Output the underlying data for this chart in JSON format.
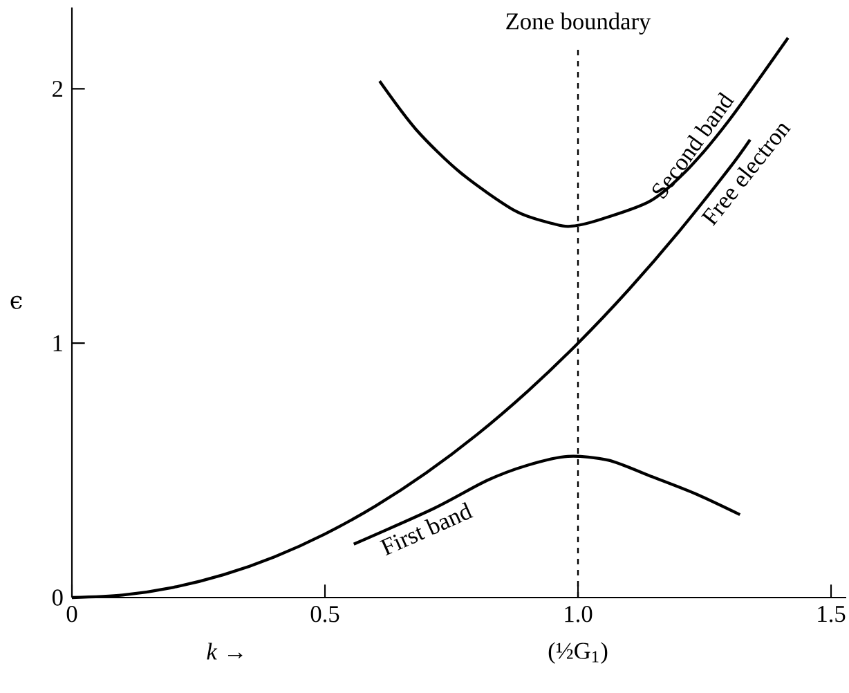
{
  "chart_data": {
    "type": "line",
    "xlabel": "*k* →",
    "ylabel": "ϵ",
    "xlim": [
      0,
      1.53
    ],
    "ylim": [
      0,
      2.32
    ],
    "xticks": [
      0,
      0.5,
      {
        "value": 1.0,
        "label": "1.0 (½G$_{1}$)"
      },
      1.5
    ],
    "yticks": [
      0,
      1,
      2
    ],
    "series": [
      {
        "name": "Free electron",
        "color": "#000000",
        "x": [
          0,
          0.1,
          0.2,
          0.3,
          0.4,
          0.5,
          0.6,
          0.7,
          0.8,
          0.9,
          1.0,
          1.1,
          1.2,
          1.3,
          1.34
        ],
        "values": [
          0,
          0.01,
          0.04,
          0.09,
          0.16,
          0.25,
          0.36,
          0.49,
          0.64,
          0.81,
          1.0,
          1.21,
          1.44,
          1.69,
          1.8
        ]
      },
      {
        "name": "First band",
        "color": "#000000",
        "x": [
          0.557,
          0.715,
          0.82,
          0.9,
          0.98,
          1.06,
          1.14,
          1.23,
          1.32
        ],
        "values": [
          0.21,
          0.35,
          0.46,
          0.52,
          0.555,
          0.54,
          0.48,
          0.41,
          0.326
        ]
      },
      {
        "name": "Second band",
        "color": "#000000",
        "x": [
          0.608,
          0.68,
          0.768,
          0.876,
          0.95,
          0.988,
          1.05,
          1.144,
          1.22,
          1.3,
          1.415
        ],
        "values": [
          2.03,
          1.84,
          1.67,
          1.52,
          1.47,
          1.46,
          1.49,
          1.56,
          1.69,
          1.88,
          2.2
        ]
      }
    ],
    "ref_lines": [
      {
        "axis": "x",
        "value": 1.0,
        "label": "Zone boundary",
        "line_style": "dashed"
      }
    ],
    "line_style": "solid",
    "marker": "none",
    "grid": false,
    "legend": false
  }
}
